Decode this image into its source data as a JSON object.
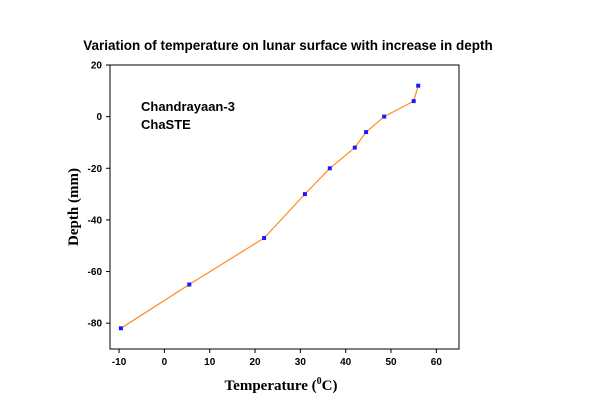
{
  "chart_data": {
    "type": "line",
    "title": "Variation of temperature on lunar surface with increase in depth",
    "xlabel_main": "Temperature (",
    "xlabel_sup": "0",
    "xlabel_end": "C)",
    "ylabel": "Depth (mm)",
    "xlim": [
      -12,
      65
    ],
    "ylim": [
      -90,
      20
    ],
    "xticks": [
      -10,
      0,
      10,
      20,
      30,
      40,
      50,
      60
    ],
    "yticks": [
      20,
      0,
      -20,
      -40,
      -60,
      -80
    ],
    "annotations": [
      "Chandrayaan-3",
      "ChaSTE"
    ],
    "grid": false,
    "series": [
      {
        "x": [
          -9.6,
          5.5,
          22.0,
          31.0,
          36.5,
          42.0,
          44.5,
          48.5,
          55.0,
          56.0
        ],
        "y": [
          -82,
          -65,
          -47,
          -30,
          -20,
          -12,
          -6,
          0,
          6,
          12
        ]
      }
    ],
    "colors": {
      "line": "#ff8c1a",
      "marker": "#1a1aff",
      "axis": "#000000"
    }
  }
}
